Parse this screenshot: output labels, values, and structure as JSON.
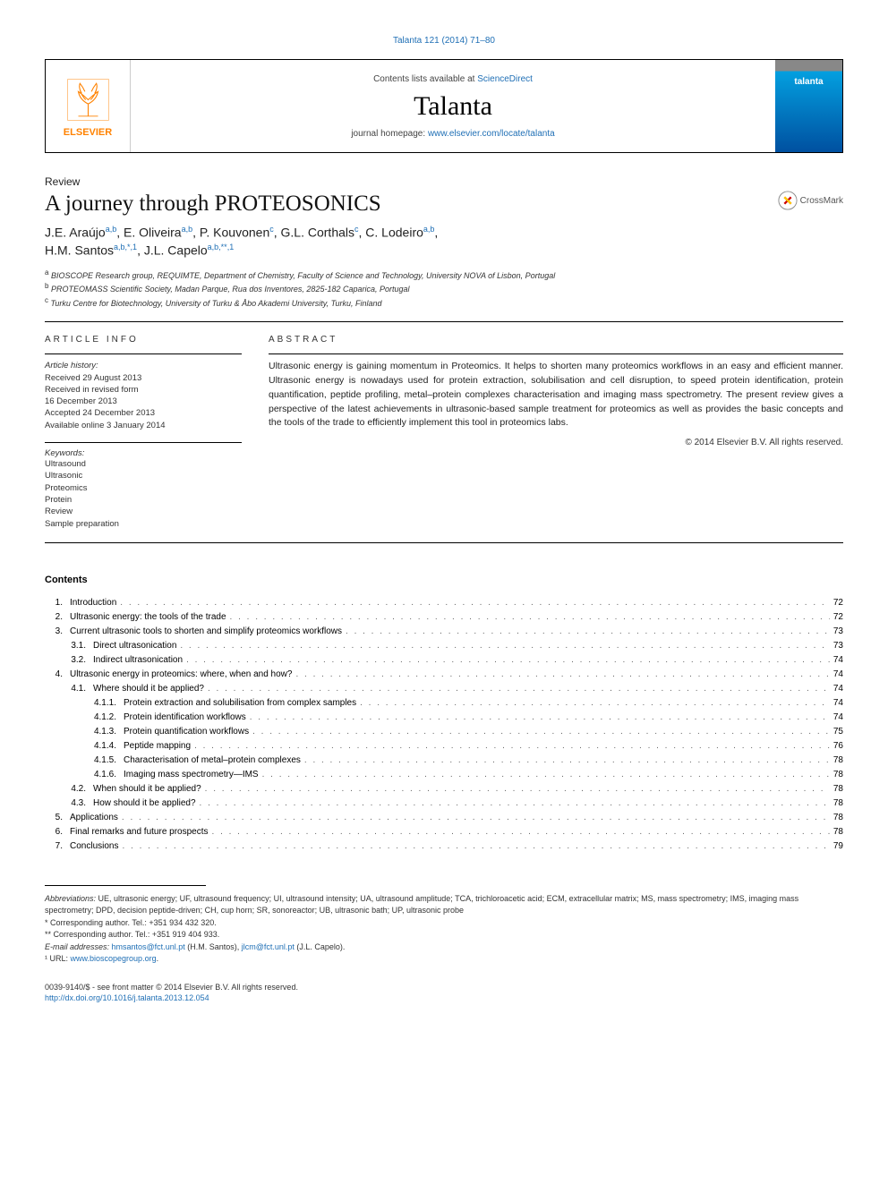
{
  "citation": "Talanta 121 (2014) 71–80",
  "header": {
    "contents_line_prefix": "Contents lists available at ",
    "contents_link": "ScienceDirect",
    "journal_name": "Talanta",
    "homepage_prefix": "journal homepage: ",
    "homepage_link": "www.elsevier.com/locate/talanta",
    "publisher": "ELSEVIER",
    "cover_label": "talanta"
  },
  "article": {
    "type": "Review",
    "title": "A journey through PROTEOSONICS",
    "crossmark": "CrossMark"
  },
  "authors": {
    "line1_a": "J.E. Araújo",
    "line1_a_sup": "a,b",
    "line1_b": ", E. Oliveira",
    "line1_b_sup": "a,b",
    "line1_c": ", P. Kouvonen",
    "line1_c_sup": "c",
    "line1_d": ", G.L. Corthals",
    "line1_d_sup": "c",
    "line1_e": ", C. Lodeiro",
    "line1_e_sup": "a,b",
    "line1_f": ",",
    "line2_a": "H.M. Santos",
    "line2_a_sup": "a,b,*,1",
    "line2_b": ", J.L. Capelo",
    "line2_b_sup": "a,b,**,1"
  },
  "affiliations": {
    "a": "BIOSCOPE Research group, REQUIMTE, Department of Chemistry, Faculty of Science and Technology, University NOVA of Lisbon, Portugal",
    "b": "PROTEOMASS Scientific Society, Madan Parque, Rua dos Inventores, 2825-182 Caparica, Portugal",
    "c": "Turku Centre for Biotechnology, University of Turku & Åbo Akademi University, Turku, Finland"
  },
  "info": {
    "header": "article info",
    "history_label": "Article history:",
    "history": [
      "Received 29 August 2013",
      "Received in revised form",
      "16 December 2013",
      "Accepted 24 December 2013",
      "Available online 3 January 2014"
    ],
    "keywords_label": "Keywords:",
    "keywords": [
      "Ultrasound",
      "Ultrasonic",
      "Proteomics",
      "Protein",
      "Review",
      "Sample preparation"
    ]
  },
  "abstract": {
    "header": "abstract",
    "text": "Ultrasonic energy is gaining momentum in Proteomics. It helps to shorten many proteomics workflows in an easy and efficient manner. Ultrasonic energy is nowadays used for protein extraction, solubilisation and cell disruption, to speed protein identification, protein quantification, peptide profiling, metal–protein complexes characterisation and imaging mass spectrometry. The present review gives a perspective of the latest achievements in ultrasonic-based sample treatment for proteomics as well as provides the basic concepts and the tools of the trade to efficiently implement this tool in proteomics labs.",
    "copyright": "© 2014 Elsevier B.V. All rights reserved."
  },
  "contents": {
    "title": "Contents",
    "items": [
      {
        "level": 1,
        "num": "1.",
        "title": "Introduction",
        "page": "72"
      },
      {
        "level": 1,
        "num": "2.",
        "title": "Ultrasonic energy: the tools of the trade",
        "page": "72"
      },
      {
        "level": 1,
        "num": "3.",
        "title": "Current ultrasonic tools to shorten and simplify proteomics workflows",
        "page": "73"
      },
      {
        "level": 2,
        "num": "3.1.",
        "title": "Direct ultrasonication",
        "page": "73"
      },
      {
        "level": 2,
        "num": "3.2.",
        "title": "Indirect ultrasonication",
        "page": "74"
      },
      {
        "level": 1,
        "num": "4.",
        "title": "Ultrasonic energy in proteomics: where, when and how?",
        "page": "74"
      },
      {
        "level": 2,
        "num": "4.1.",
        "title": "Where should it be applied?",
        "page": "74"
      },
      {
        "level": 3,
        "num": "4.1.1.",
        "title": "Protein extraction and solubilisation from complex samples",
        "page": "74"
      },
      {
        "level": 3,
        "num": "4.1.2.",
        "title": "Protein identification workflows",
        "page": "74"
      },
      {
        "level": 3,
        "num": "4.1.3.",
        "title": "Protein quantification workflows",
        "page": "75"
      },
      {
        "level": 3,
        "num": "4.1.4.",
        "title": "Peptide mapping",
        "page": "76"
      },
      {
        "level": 3,
        "num": "4.1.5.",
        "title": "Characterisation of metal–protein complexes",
        "page": "78"
      },
      {
        "level": 3,
        "num": "4.1.6.",
        "title": "Imaging mass spectrometry—IMS",
        "page": "78"
      },
      {
        "level": 2,
        "num": "4.2.",
        "title": "When should it be applied?",
        "page": "78"
      },
      {
        "level": 2,
        "num": "4.3.",
        "title": "How should it be applied?",
        "page": "78"
      },
      {
        "level": 1,
        "num": "5.",
        "title": "Applications",
        "page": "78"
      },
      {
        "level": 1,
        "num": "6.",
        "title": "Final remarks and future prospects",
        "page": "78"
      },
      {
        "level": 1,
        "num": "7.",
        "title": "Conclusions",
        "page": "79"
      }
    ]
  },
  "footer": {
    "abbrev_label": "Abbreviations:",
    "abbrev_text": " UE, ultrasonic energy; UF, ultrasound frequency; UI, ultrasound intensity; UA, ultrasound amplitude; TCA, trichloroacetic acid; ECM, extracellular matrix; MS, mass spectrometry; IMS, imaging mass spectrometry; DPD, decision peptide-driven; CH, cup horn; SR, sonoreactor; UB, ultrasonic bath; UP, ultrasonic probe",
    "corr1": "* Corresponding author. Tel.: +351 934 432 320.",
    "corr2": "** Corresponding author. Tel.: +351 919 404 933.",
    "email_label": "E-mail addresses: ",
    "email1": "hmsantos@fct.unl.pt",
    "email1_name": " (H.M. Santos), ",
    "email2": "jlcm@fct.unl.pt",
    "email2_name": " (J.L. Capelo).",
    "url_label": "¹ URL: ",
    "url": "www.bioscopegroup.org",
    "url_suffix": ".",
    "issn": "0039-9140/$ - see front matter © 2014 Elsevier B.V. All rights reserved.",
    "doi": "http://dx.doi.org/10.1016/j.talanta.2013.12.054"
  },
  "colors": {
    "link": "#1f6fb5",
    "elsevier_orange": "#ff8200",
    "cover_gradient_top": "#03a0e0",
    "cover_gradient_bottom": "#0050a0"
  }
}
